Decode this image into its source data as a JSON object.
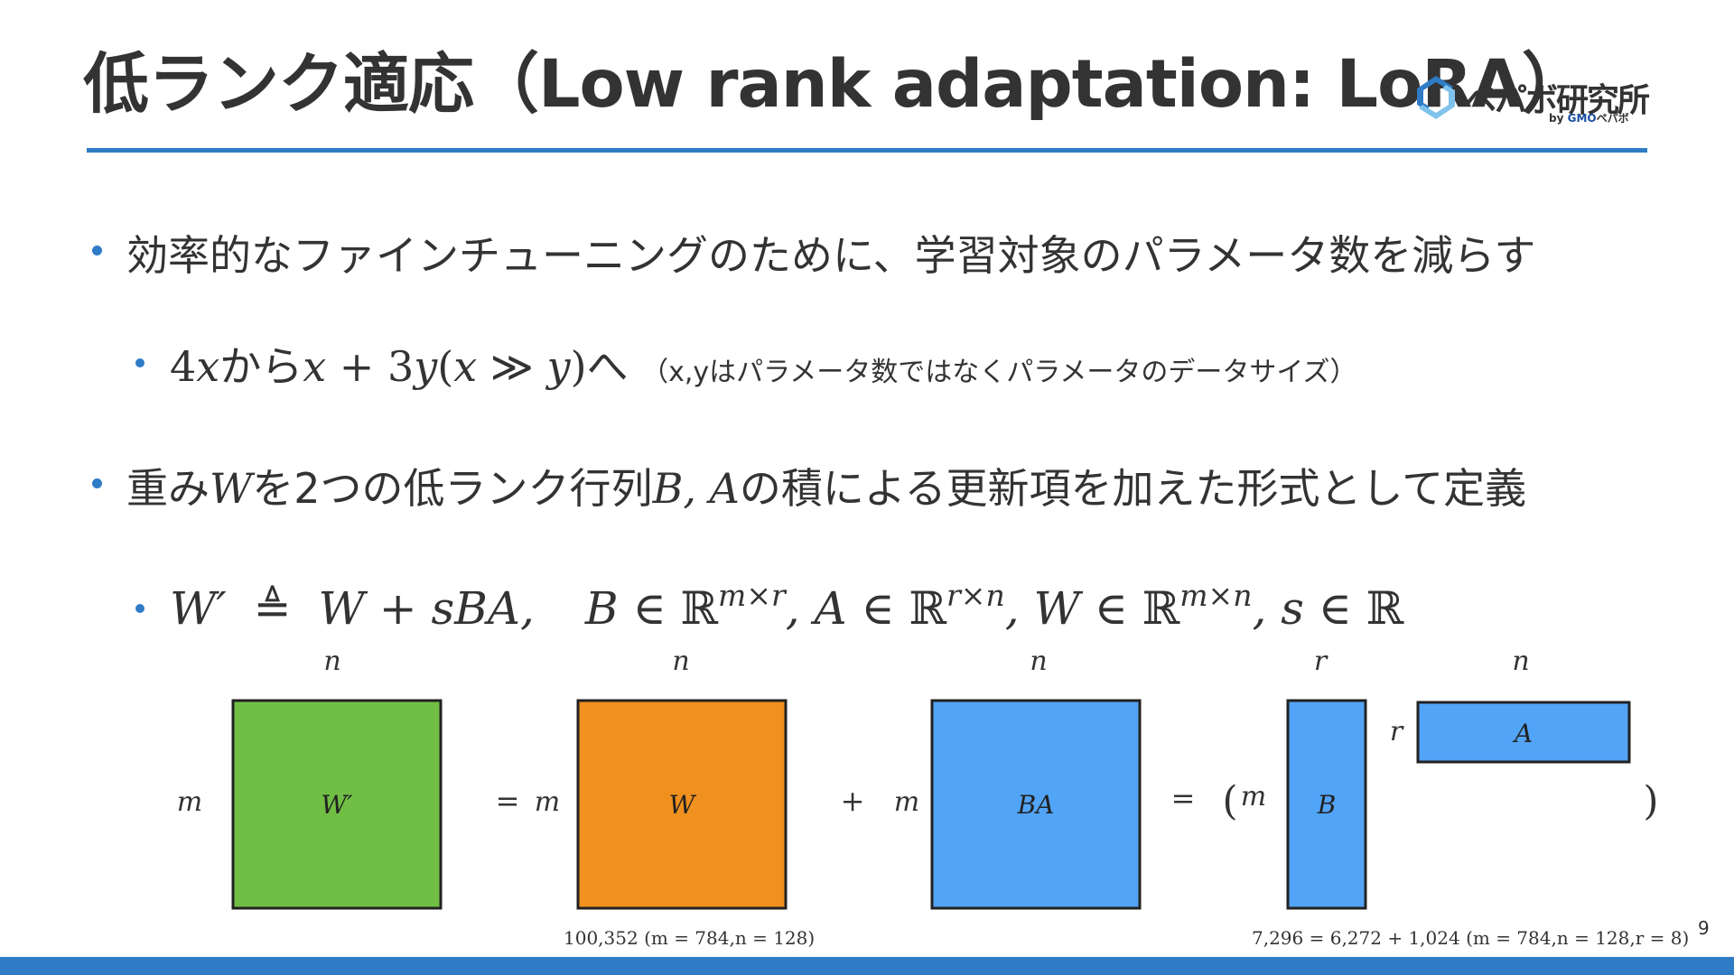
{
  "title": "低ランク適応（Low rank adaptation: LoRA）",
  "logo": {
    "name": "ペパボ研究所",
    "sub_by": "by",
    "sub_gmo": "GMO",
    "sub_pepabo": "ペパボ"
  },
  "bullets": {
    "b1": "効率的なファインチューニングのために、学習対象のパラメータ数を減らす",
    "b2": {
      "a": "4",
      "x1": "x",
      "kara": "から",
      "x2": "x",
      "plus": " + 3",
      "y1": "y",
      "paren_open": "(",
      "x3": "x",
      "gg": " ≫ ",
      "y2": "y",
      "paren_close": ")",
      "he": "へ",
      "note": "（x,yはパラメータ数ではなくパラメータのデータサイズ）"
    },
    "b3": {
      "pre": "重み",
      "W": "W",
      "mid": "を2つの低ランク行列",
      "BA": "B, A",
      "post": "の積による更新項を加えた形式として定義"
    },
    "b4": {
      "Wp": "W′",
      "def": " ≜ ",
      "rhs": "W + sBA,",
      "B": "B",
      "in1": " ∈ ℝ",
      "sup1": "m×r",
      "A": ",  A",
      "in2": " ∈ ℝ",
      "sup2": "r×n",
      "W2": ",  W",
      "in3": " ∈ ℝ",
      "sup3": "m×n",
      "s": ",  s",
      "in4": " ∈ ℝ"
    }
  },
  "diagram": {
    "labels": {
      "n": "n",
      "m": "m",
      "r": "r",
      "Wp": "W′",
      "W": "W",
      "BA": "BA",
      "B": "B",
      "A": "A",
      "eq": "=",
      "plus": "+",
      "lparen": "(",
      "rparen": ")"
    },
    "caption_left": "100,352    (m = 784,n = 128)",
    "caption_right": "7,296 = 6,272 + 1,024    (m = 784,n = 128,r = 8)",
    "colors": {
      "green": "#70bf44",
      "orange": "#f0901f",
      "blue": "#52a4f7",
      "border": "#222222"
    }
  },
  "page_number": "9",
  "colors": {
    "accent": "#2f7bc6",
    "text": "#333333"
  }
}
